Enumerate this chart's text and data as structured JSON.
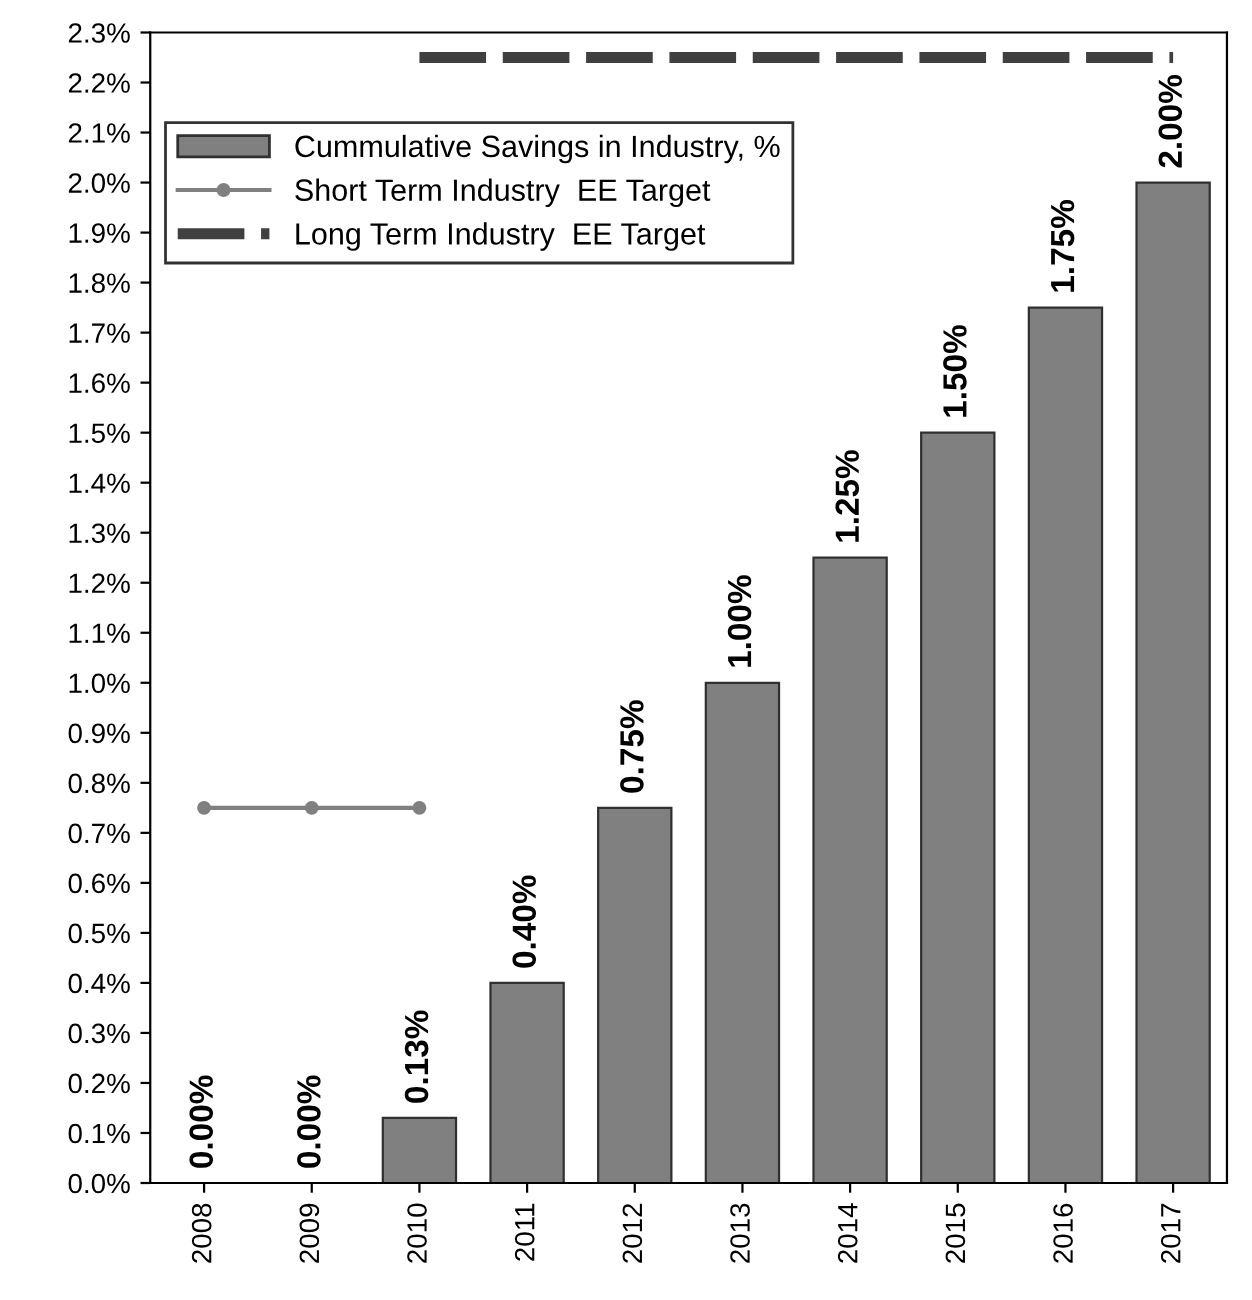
{
  "chart_data": {
    "type": "bar",
    "categories": [
      "2008",
      "2009",
      "2010",
      "2011",
      "2012",
      "2013",
      "2014",
      "2015",
      "2016",
      "2017"
    ],
    "series": [
      {
        "name": "Cummulative Savings in Industry, %",
        "color": "#808080",
        "values": [
          0,
          0,
          0.13,
          0.4,
          0.75,
          1.0,
          1.25,
          1.5,
          1.75,
          2.0
        ],
        "value_labels": [
          "0.00%",
          "0.00%",
          "0.13%",
          "0.40%",
          "0.75%",
          "1.00%",
          "1.25%",
          "1.50%",
          "1.75%",
          "2.00%"
        ]
      },
      {
        "name": "Short Term Industry  EE Target",
        "type": "line",
        "color": "#808080",
        "marker": "circle",
        "line_style": "solid",
        "values": [
          0.75,
          0.75,
          0.75,
          null,
          null,
          null,
          null,
          null,
          null,
          null
        ]
      },
      {
        "name": "Long Term Industry  EE Target",
        "type": "line",
        "color": "#404040",
        "marker": "none",
        "line_style": "dashed",
        "values": [
          null,
          null,
          2.25,
          2.25,
          2.25,
          2.25,
          2.25,
          2.25,
          2.25,
          2.25
        ]
      }
    ],
    "ylim": [
      0,
      2.3
    ],
    "yticks": [
      {
        "value": 0,
        "label": "0.0%"
      },
      {
        "value": 0.1,
        "label": "0.1%"
      },
      {
        "value": 0.2,
        "label": "0.2%"
      },
      {
        "value": 0.3,
        "label": "0.3%"
      },
      {
        "value": 0.4,
        "label": "0.4%"
      },
      {
        "value": 0.5,
        "label": "0.5%"
      },
      {
        "value": 0.6,
        "label": "0.6%"
      },
      {
        "value": 0.7,
        "label": "0.7%"
      },
      {
        "value": 0.8,
        "label": "0.8%"
      },
      {
        "value": 0.9,
        "label": "0.9%"
      },
      {
        "value": 1.0,
        "label": "1.0%"
      },
      {
        "value": 1.1,
        "label": "1.1%"
      },
      {
        "value": 1.2,
        "label": "1.2%"
      },
      {
        "value": 1.3,
        "label": "1.3%"
      },
      {
        "value": 1.4,
        "label": "1.4%"
      },
      {
        "value": 1.5,
        "label": "1.5%"
      },
      {
        "value": 1.6,
        "label": "1.6%"
      },
      {
        "value": 1.7,
        "label": "1.7%"
      },
      {
        "value": 1.8,
        "label": "1.8%"
      },
      {
        "value": 1.9,
        "label": "1.9%"
      },
      {
        "value": 2.0,
        "label": "2.0%"
      },
      {
        "value": 2.1,
        "label": "2.1%"
      },
      {
        "value": 2.2,
        "label": "2.2%"
      },
      {
        "value": 2.3,
        "label": "2.3%"
      }
    ],
    "legend": "top left",
    "grid": false
  }
}
